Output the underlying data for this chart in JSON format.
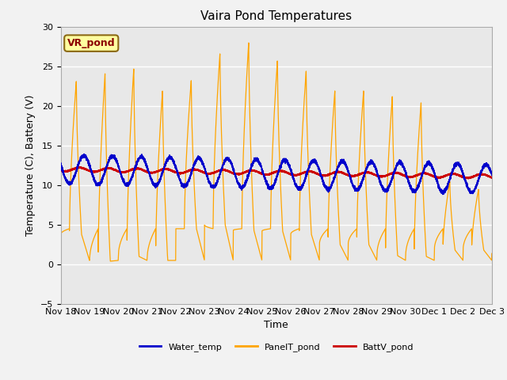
{
  "title": "Vaira Pond Temperatures",
  "ylabel": "Temperature (C), Battery (V)",
  "xlabel": "Time",
  "ylim": [
    -5,
    30
  ],
  "background_color": "#f2f2f2",
  "plot_bg_color": "#e8e8e8",
  "water_temp_color": "#0000cc",
  "panel_temp_color": "#ffa500",
  "batt_color": "#cc0000",
  "annotation_text": "VR_pond",
  "annotation_facecolor": "#ffffa0",
  "annotation_edgecolor": "#8b6914",
  "x_tick_labels": [
    "Nov 18",
    "Nov 19",
    "Nov 20",
    "Nov 21",
    "Nov 22",
    "Nov 23",
    "Nov 24",
    "Nov 25",
    "Nov 26",
    "Nov 27",
    "Nov 28",
    "Nov 29",
    "Nov 30",
    "Dec 1",
    "Dec 2",
    "Dec 3"
  ],
  "x_tick_positions": [
    0,
    1,
    2,
    3,
    4,
    5,
    6,
    7,
    8,
    9,
    10,
    11,
    12,
    13,
    14,
    15
  ],
  "legend_labels": [
    "Water_temp",
    "PanelT_pond",
    "BattV_pond"
  ],
  "title_fontsize": 11,
  "axis_fontsize": 9,
  "tick_fontsize": 8,
  "panel_peaks": [
    23.2,
    24.2,
    24.8,
    22.0,
    23.3,
    26.7,
    28.1,
    25.8,
    24.5,
    22.0,
    22.0,
    21.3,
    20.5,
    10.5,
    9.5
  ],
  "panel_night_min": [
    3.8,
    0.4,
    1.0,
    0.5,
    4.5,
    5.0,
    4.3,
    4.2,
    3.8,
    2.5,
    2.5,
    1.1,
    1.0,
    1.8,
    1.8
  ],
  "water_base": 12.0,
  "water_trend": -0.08,
  "batt_start": 12.0,
  "batt_end": 11.1
}
